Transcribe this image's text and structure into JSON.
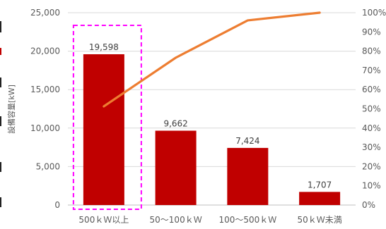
{
  "chart_data": {
    "type": "bar",
    "categories": [
      "500ｋＷ以上",
      "50～100ｋＷ",
      "100～500ｋＷ",
      "50ｋＷ未満"
    ],
    "series": [
      {
        "type": "bar",
        "values": [
          19598,
          9662,
          7424,
          1707
        ],
        "value_labels": [
          "19,598",
          "9,662",
          "7,424",
          "1,707"
        ],
        "color": "#c00000"
      },
      {
        "type": "line",
        "axis": "right",
        "values": [
          51.3,
          76.6,
          96.0,
          100.0
        ],
        "color": "#ed7d31"
      }
    ],
    "ylabel": "設備容量[kW]",
    "ylim": [
      0,
      25000
    ],
    "y_ticks": [
      "0",
      "5,000",
      "10,000",
      "15,000",
      "20,000",
      "25,000"
    ],
    "y2lim": [
      0,
      100
    ],
    "y2_ticks": [
      "0%",
      "10%",
      "20%",
      "30%",
      "40%",
      "50%",
      "60%",
      "70%",
      "80%",
      "90%",
      "100%"
    ],
    "grid": true,
    "highlight": {
      "category_index": 0,
      "style": "dashed",
      "color": "#ff00ff"
    }
  }
}
